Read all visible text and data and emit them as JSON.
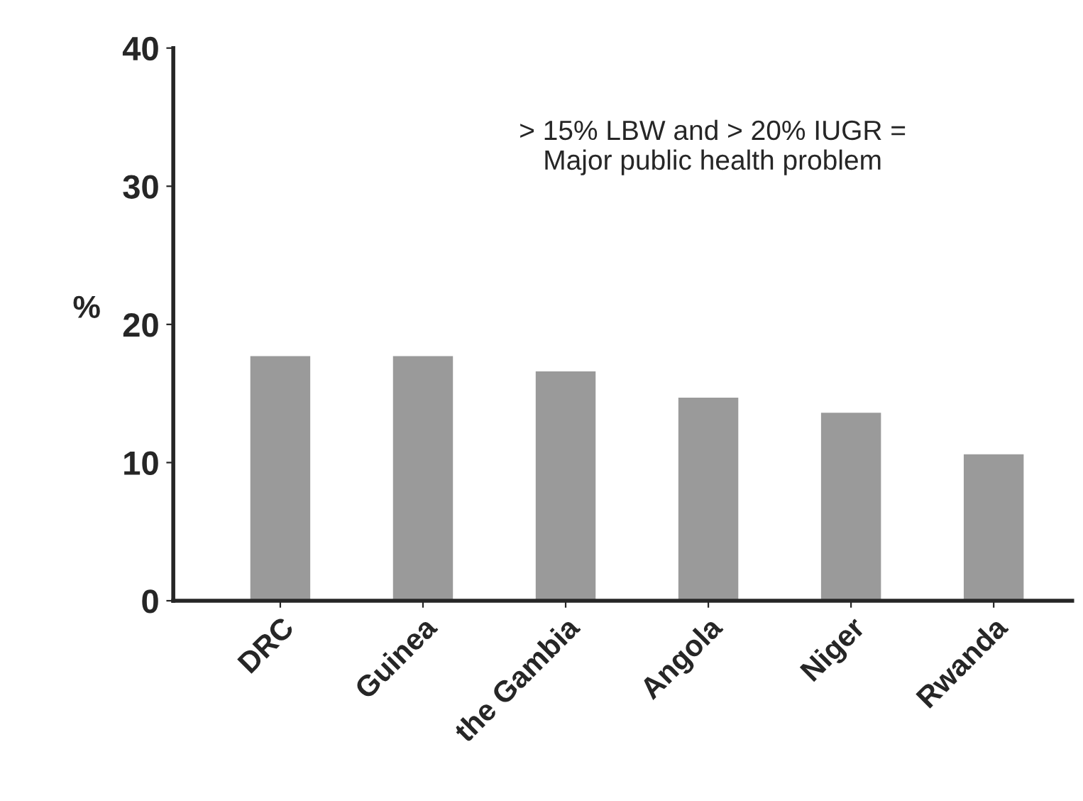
{
  "chart_data": {
    "type": "bar",
    "ylabel": "%",
    "categories": [
      "DRC",
      "Guinea",
      "the Gambia",
      "Angola",
      "Niger",
      "Rwanda"
    ],
    "values": [
      17.7,
      17.7,
      16.6,
      14.7,
      13.6,
      10.6
    ],
    "color": "#9a9a9a",
    "ylim": [
      0,
      40
    ],
    "yticks": [
      0,
      10,
      20,
      30,
      40
    ],
    "grid": false,
    "legend": false,
    "annotations": [
      "> 15% LBW and > 20% IUGR =\nMajor public health problem"
    ]
  }
}
